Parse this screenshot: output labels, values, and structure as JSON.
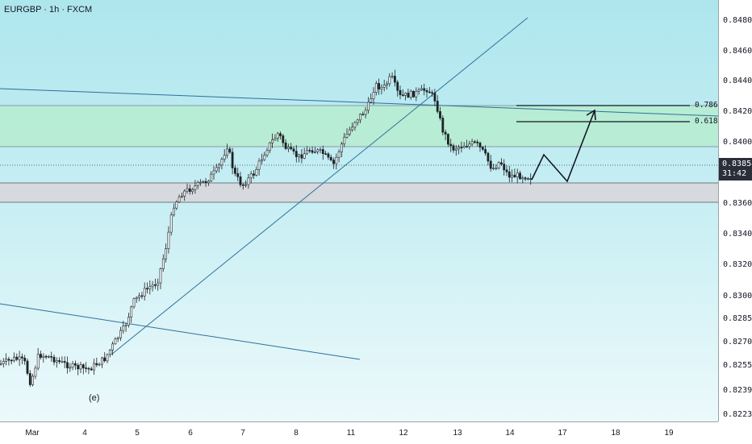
{
  "header": {
    "symbol_title": "EURGBP · 1h · FXCM"
  },
  "price_axis": {
    "ticks": [
      "0.84800",
      "0.84600",
      "0.84400",
      "0.84200",
      "0.84000",
      "0.83600",
      "0.83400",
      "0.83200",
      "0.83000",
      "0.82850",
      "0.82700",
      "0.82550",
      "0.82390",
      "0.82230"
    ]
  },
  "time_axis": {
    "ticks": [
      "Mar",
      "4",
      "5",
      "6",
      "7",
      "8",
      "11",
      "12",
      "13",
      "14",
      "17",
      "18",
      "19"
    ]
  },
  "current_price": {
    "value": "0.83858",
    "countdown": "31:42"
  },
  "fib_levels": {
    "upper": "0.786",
    "lower": "0.618"
  },
  "annotations": {
    "wave_label": "(e)"
  },
  "colors": {
    "candle": "#1e2226",
    "trendline": "#2f6f99",
    "green_zone": "#b6ecd0",
    "gray_zone": "#d6d9dd",
    "path": "#131722"
  }
}
